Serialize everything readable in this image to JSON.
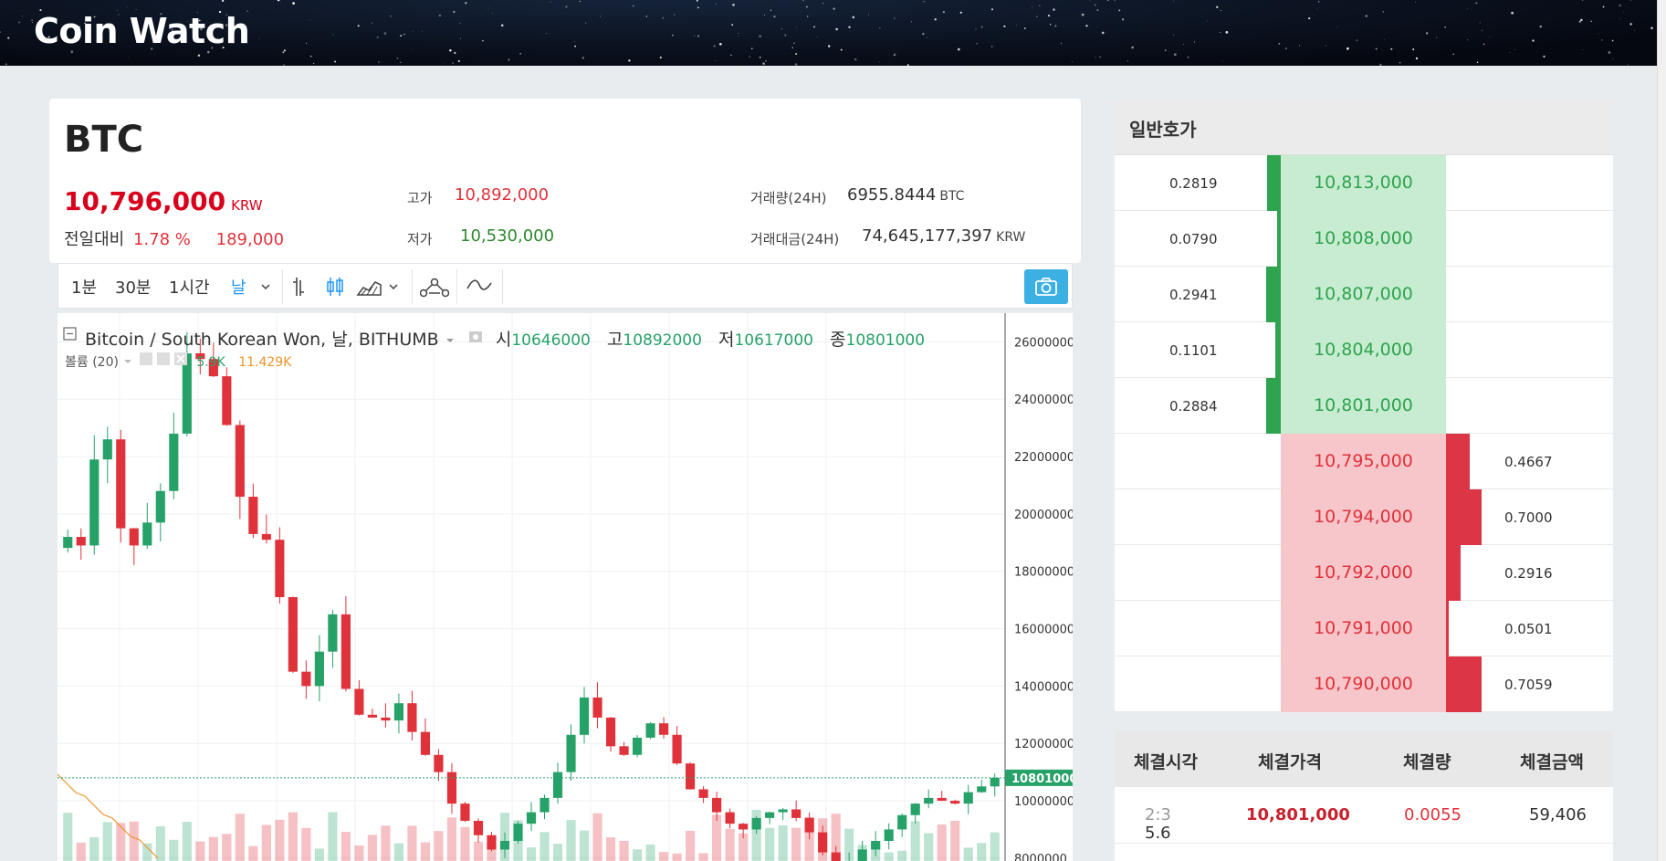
{
  "app": {
    "title": "Coin Watch"
  },
  "ticker": {
    "symbol": "BTC",
    "price": "10,796,000",
    "price_unit": "KRW",
    "change_label": "전일대비",
    "change_pct": "1.78 %",
    "change_amt": "189,000",
    "high_label": "고가",
    "high": "10,892,000",
    "low_label": "저가",
    "low": "10,530,000",
    "volume_label": "거래량(24H)",
    "volume": "6955.8444",
    "volume_unit": "BTC",
    "amount_label": "거래대금(24H)",
    "amount": "74,645,177,397",
    "amount_unit": "KRW"
  },
  "toolbar": {
    "intervals": [
      "1분",
      "30분",
      "1시간",
      "날"
    ],
    "active_interval": "날"
  },
  "chart_legend": {
    "title": "Bitcoin / South Korean Won, 날, BITHUMB",
    "open_label": "시",
    "open": "10646000",
    "high_label": "고",
    "high": "10892000",
    "low_label": "저",
    "low": "10617000",
    "close_label": "종",
    "close": "10801000",
    "volume_label": "볼륨 (20)",
    "volume_val": "5.9K",
    "volume_ma": "11.429K"
  },
  "chart_data": {
    "type": "candlestick",
    "series_name": "Bitcoin / South Korean Won",
    "y_ticks": [
      "26000000",
      "24000000",
      "22000000",
      "20000000",
      "18000000",
      "16000000",
      "14000000",
      "12000000",
      "10000000",
      "8000000"
    ],
    "ylim": [
      7900000,
      27000000
    ],
    "last_price_label": "10801000",
    "last_price": 10801000,
    "closes": [
      19200000,
      18900000,
      21900000,
      22600000,
      19500000,
      18900000,
      19700000,
      20800000,
      22800000,
      25600000,
      25400000,
      24800000,
      23100000,
      20600000,
      19300000,
      19100000,
      17100000,
      14500000,
      14000000,
      15200000,
      16500000,
      13900000,
      13000000,
      12900000,
      12800000,
      13400000,
      12400000,
      11600000,
      11000000,
      9900000,
      9300000,
      8800000,
      8300000,
      8600000,
      9200000,
      9600000,
      10100000,
      11000000,
      12300000,
      13600000,
      12900000,
      11900000,
      11600000,
      12200000,
      12700000,
      12300000,
      11300000,
      10400000,
      10100000,
      9600000,
      9200000,
      9000000,
      9400000,
      9600000,
      9700000,
      9400000,
      8900000,
      8200000,
      7700000,
      7900000,
      8300000,
      8600000,
      9000000,
      9500000,
      9900000,
      10100000,
      10000000,
      9900000,
      10300000,
      10500000,
      10801000
    ]
  },
  "orderbook": {
    "title": "일반호가",
    "asks": [
      {
        "qty": "0.2819",
        "price": "10,813,000",
        "w": 0.28
      },
      {
        "qty": "0.0790",
        "price": "10,808,000",
        "w": 0.08
      },
      {
        "qty": "0.2941",
        "price": "10,807,000",
        "w": 0.29
      },
      {
        "qty": "0.1101",
        "price": "10,804,000",
        "w": 0.11
      },
      {
        "qty": "0.2884",
        "price": "10,801,000",
        "w": 0.29
      }
    ],
    "bids": [
      {
        "qty": "0.4667",
        "price": "10,795,000",
        "w": 0.47
      },
      {
        "qty": "0.7000",
        "price": "10,794,000",
        "w": 0.7
      },
      {
        "qty": "0.2916",
        "price": "10,792,000",
        "w": 0.29
      },
      {
        "qty": "0.0501",
        "price": "10,791,000",
        "w": 0.05
      },
      {
        "qty": "0.7059",
        "price": "10,790,000",
        "w": 0.71
      }
    ]
  },
  "trades": {
    "headers": [
      "체결시각",
      "체결가격",
      "체결량",
      "체결금액"
    ],
    "rows": [
      {
        "time": "5.6",
        "time_sub": "2:3",
        "price": "10,801,000",
        "qty": "0.0055",
        "amount": "59,406"
      }
    ]
  },
  "colors": {
    "up": "#26a269",
    "down": "#e0323a",
    "accent": "#3cb0e3"
  }
}
